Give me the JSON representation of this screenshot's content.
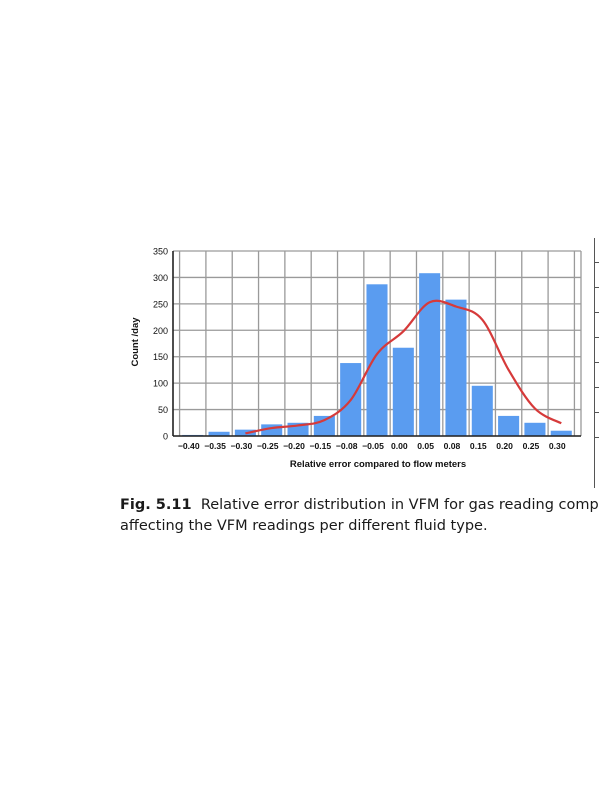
{
  "chart_data": {
    "type": "bar",
    "categories": [
      "−0.40",
      "−0.35",
      "−0.30",
      "−0.25",
      "−0.20",
      "−0.15",
      "−0.08",
      "−0.05",
      "0.00",
      "0.05",
      "0.08",
      "0.15",
      "0.20",
      "0.25",
      "0.30"
    ],
    "values": [
      2,
      8,
      12,
      22,
      25,
      38,
      138,
      287,
      167,
      308,
      258,
      95,
      38,
      25,
      10
    ],
    "series": [
      {
        "type": "bar",
        "values": [
          2,
          8,
          12,
          22,
          25,
          38,
          138,
          287,
          167,
          308,
          258,
          95,
          38,
          25,
          10
        ],
        "color": "#5a9cf0"
      },
      {
        "type": "line",
        "values": [
          null,
          null,
          5,
          15,
          20,
          30,
          68,
          155,
          198,
          253,
          245,
          220,
          125,
          52,
          24
        ],
        "color": "#d63a3a"
      }
    ],
    "title": "",
    "xlabel": "Relative error compared to flow meters",
    "ylabel": "Count /day",
    "ylim": [
      0,
      350
    ],
    "yticks": [
      0,
      50,
      100,
      150,
      200,
      250,
      300,
      350
    ],
    "grid": true
  },
  "caption": {
    "label": "Fig. 5.11",
    "line1": "Relative error distribution in VFM for gas reading compare",
    "line2": "affecting the VFM readings per different fluid type."
  }
}
